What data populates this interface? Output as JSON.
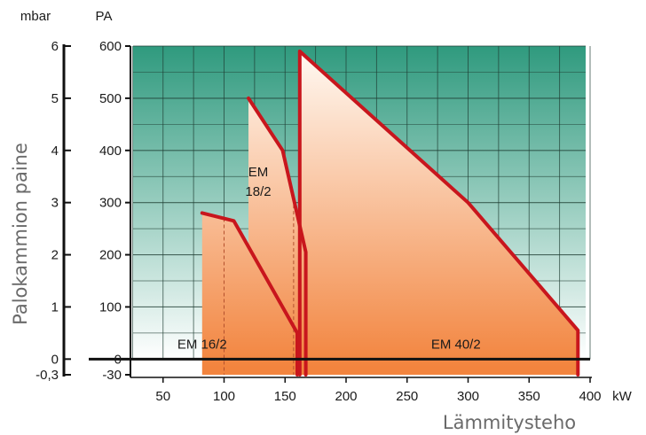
{
  "chart_data": {
    "type": "area",
    "xlabel": "Lämmitysteho",
    "xunit": "kW",
    "ylabel": "Palokammion paine",
    "yunit_left": "mbar",
    "yunit_right": "PA",
    "xlim": [
      0,
      400
    ],
    "ylim": [
      -30,
      600
    ],
    "x_ticks": [
      50,
      100,
      150,
      200,
      250,
      300,
      350,
      400
    ],
    "x_tick_labels": [
      "50",
      "100",
      "150",
      "200",
      "250",
      "300",
      "350",
      "400"
    ],
    "pa_ticks": [
      600,
      500,
      400,
      300,
      200,
      100,
      0,
      -30
    ],
    "pa_tick_labels": [
      "600",
      "500",
      "400",
      "300",
      "200",
      "100",
      "0",
      "-30"
    ],
    "mbar_tick_labels": [
      "6",
      "5",
      "4",
      "3",
      "2",
      "1",
      "0",
      "-0,3"
    ],
    "grid": true,
    "series": [
      {
        "name": "EM 16/2",
        "label_lines": [
          "EM 16/2"
        ],
        "label_at": [
          82,
          20
        ],
        "points": [
          [
            82,
            -30
          ],
          [
            82,
            280
          ],
          [
            108,
            265
          ],
          [
            160,
            50
          ],
          [
            160,
            -30
          ]
        ],
        "boundary": [
          [
            82,
            280
          ],
          [
            108,
            265
          ],
          [
            160,
            50
          ],
          [
            160,
            -30
          ]
        ],
        "ref_x": 100
      },
      {
        "name": "EM 18/2",
        "label_lines": [
          "EM",
          "18/2"
        ],
        "label_at": [
          128,
          350
        ],
        "points": [
          [
            120,
            -30
          ],
          [
            120,
            500
          ],
          [
            148,
            400
          ],
          [
            167,
            205
          ],
          [
            167,
            -30
          ]
        ],
        "boundary": [
          [
            120,
            500
          ],
          [
            148,
            400
          ],
          [
            167,
            205
          ],
          [
            167,
            -30
          ]
        ],
        "ref_x": 157
      },
      {
        "name": "EM 40/2",
        "label_lines": [
          "EM 40/2"
        ],
        "label_at": [
          290,
          20
        ],
        "points": [
          [
            162,
            -30
          ],
          [
            162,
            590
          ],
          [
            300,
            300
          ],
          [
            390,
            55
          ],
          [
            390,
            -30
          ]
        ],
        "boundary": [
          [
            162,
            -30
          ],
          [
            162,
            590
          ],
          [
            300,
            300
          ],
          [
            390,
            55
          ],
          [
            390,
            -30
          ]
        ]
      }
    ],
    "colors": {
      "grid_bg_top": "#2f9a7e",
      "grid_bg_bottom": "#ffffff",
      "grid_line": "#1e3c32",
      "boundary": "#c8161d",
      "area_top": "#fffaf4",
      "area_bottom": "#f2843e"
    }
  }
}
